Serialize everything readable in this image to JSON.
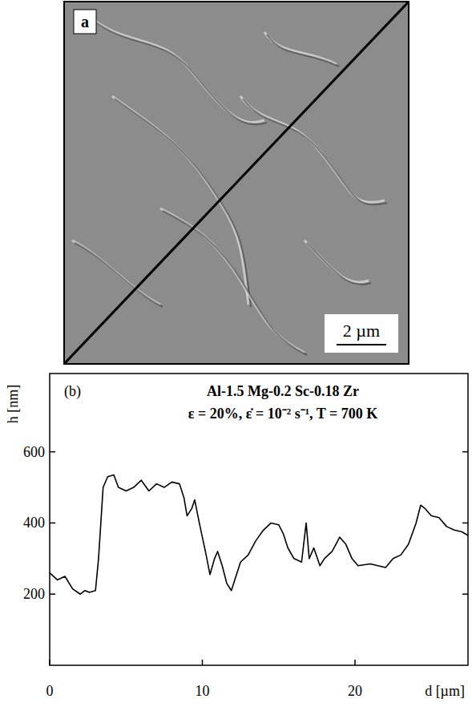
{
  "image_panel": {
    "label": "a",
    "scale_bar": "2 µm"
  },
  "chart_data": {
    "type": "line",
    "title": "Al-1.5 Mg-0.2 Sc-0.18 Zr",
    "subtitle": "ε = 20%,  ε̇ = 10⁻² s⁻¹, T = 700 K",
    "annotations": [
      "(b)"
    ],
    "x_label": "d [µm]",
    "y_label": "h [nm]",
    "color": "#000000",
    "x": [
      0,
      0.5,
      1,
      1.5,
      2,
      2.3,
      2.6,
      3,
      3.2,
      3.5,
      3.8,
      4.2,
      4.5,
      5,
      5.5,
      6,
      6.5,
      7,
      7.5,
      8,
      8.5,
      8.8,
      9,
      9.3,
      9.5,
      9.8,
      10.2,
      10.5,
      10.8,
      11,
      11.3,
      11.6,
      11.9,
      12.2,
      12.5,
      13,
      13.5,
      14,
      14.5,
      15,
      15.3,
      15.6,
      16,
      16.5,
      16.8,
      17,
      17.3,
      17.7,
      18,
      18.5,
      19,
      19.4,
      19.8,
      20.2,
      21,
      22,
      22.5,
      23,
      23.5,
      24,
      24.3,
      24.6,
      25,
      25.5,
      26,
      26.5,
      27,
      27.4
    ],
    "values": [
      260,
      240,
      250,
      215,
      200,
      210,
      205,
      210,
      300,
      500,
      530,
      535,
      500,
      490,
      500,
      520,
      490,
      510,
      500,
      515,
      510,
      470,
      420,
      440,
      465,
      400,
      320,
      255,
      300,
      320,
      280,
      230,
      210,
      250,
      290,
      310,
      350,
      380,
      400,
      395,
      370,
      330,
      300,
      290,
      400,
      300,
      330,
      280,
      300,
      320,
      360,
      340,
      300,
      280,
      285,
      275,
      300,
      310,
      340,
      400,
      450,
      440,
      420,
      415,
      390,
      380,
      375,
      365
    ],
    "xlim": [
      0,
      27.4
    ],
    "ylim": [
      0,
      820
    ],
    "xticks": [
      0,
      10,
      20
    ],
    "yticks": [
      200,
      400,
      600
    ],
    "grid": false
  }
}
